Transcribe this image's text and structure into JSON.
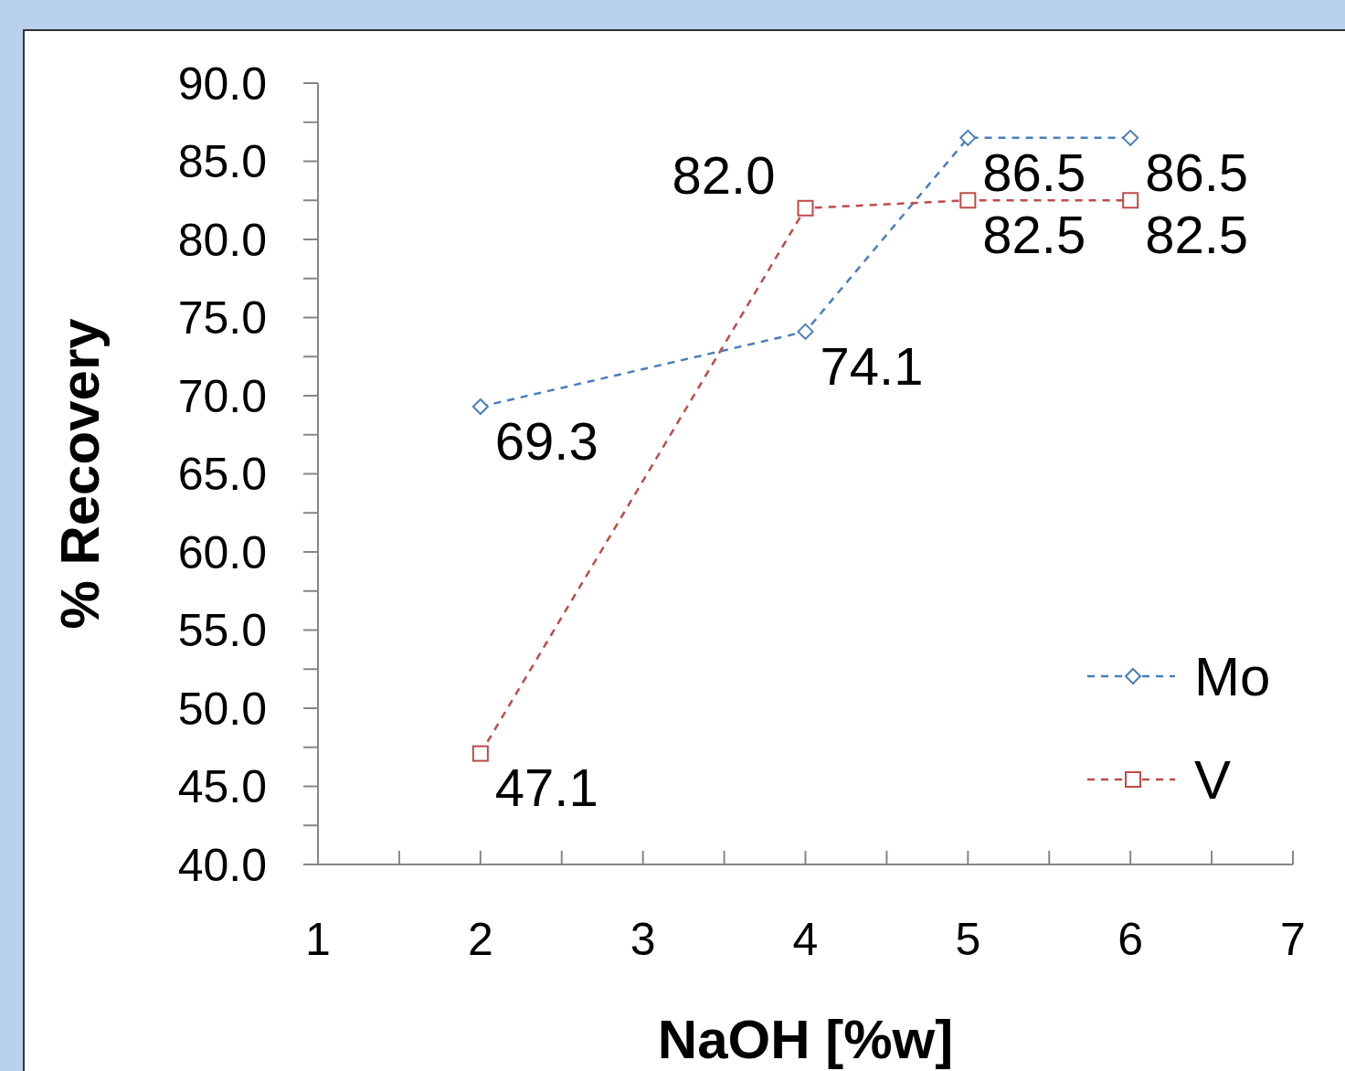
{
  "chart_data": {
    "type": "line",
    "xlabel": "NaOH [%w]",
    "ylabel": "% Recovery",
    "xlim": [
      1,
      7
    ],
    "xticks": [
      1,
      {
        "value": 1.5,
        "label": null
      },
      2,
      {
        "value": 2.5,
        "label": null
      },
      3,
      {
        "value": 3.5,
        "label": null
      },
      4,
      {
        "value": 4.5,
        "label": null
      },
      5,
      {
        "value": 5.5,
        "label": null
      },
      6,
      {
        "value": 6.5,
        "label": null
      },
      7
    ],
    "ylim": [
      40,
      90
    ],
    "yticks": [
      {
        "value": 40,
        "label": "40.0"
      },
      {
        "value": 42.5,
        "label": null
      },
      {
        "value": 45,
        "label": "45.0"
      },
      {
        "value": 47.5,
        "label": null
      },
      {
        "value": 50,
        "label": "50.0"
      },
      {
        "value": 52.5,
        "label": null
      },
      {
        "value": 55,
        "label": "55.0"
      },
      {
        "value": 57.5,
        "label": null
      },
      {
        "value": 60,
        "label": "60.0"
      },
      {
        "value": 62.5,
        "label": null
      },
      {
        "value": 65,
        "label": "65.0"
      },
      {
        "value": 67.5,
        "label": null
      },
      {
        "value": 70,
        "label": "70.0"
      },
      {
        "value": 72.5,
        "label": null
      },
      {
        "value": 75,
        "label": "75.0"
      },
      {
        "value": 77.5,
        "label": null
      },
      {
        "value": 80,
        "label": "80.0"
      },
      {
        "value": 82.5,
        "label": null
      },
      {
        "value": 85,
        "label": "85.0"
      },
      {
        "value": 87.5,
        "label": null
      },
      {
        "value": 90,
        "label": "90.0"
      }
    ],
    "x": [
      2,
      4,
      5,
      6
    ],
    "series": [
      {
        "name": "Mo",
        "color": "#4a7ebb",
        "marker": "diamond",
        "values": [
          69.3,
          74.1,
          86.5,
          86.5
        ],
        "value_labels": [
          "69.3",
          "74.1",
          "86.5",
          "86.5"
        ]
      },
      {
        "name": "V",
        "color": "#be4b48",
        "marker": "square",
        "values": [
          47.1,
          82.0,
          82.5,
          82.5
        ],
        "value_labels": [
          "47.1",
          "82.0",
          "82.5",
          "82.5"
        ]
      }
    ],
    "line_style": "dashed",
    "grid": false,
    "legend": "bottom right"
  }
}
